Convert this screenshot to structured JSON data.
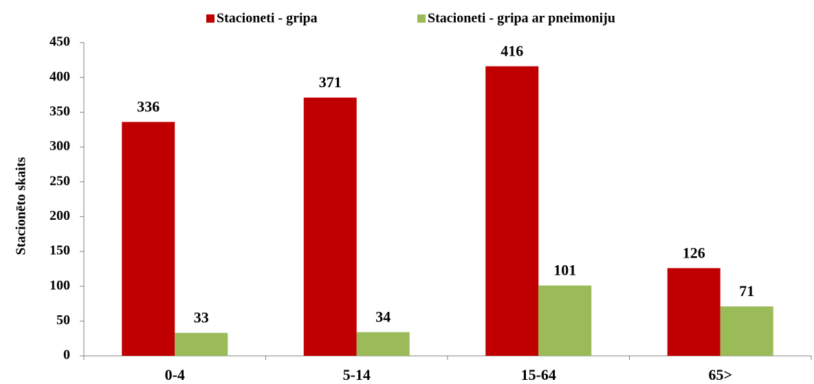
{
  "chart_data": {
    "type": "bar",
    "y_label": "Stacionēto skaits",
    "categories": [
      "0-4",
      "5-14",
      "15-64",
      "65>"
    ],
    "series": [
      {
        "name": "Stacioneti - gripa",
        "color": "#c00000",
        "values": [
          336,
          371,
          416,
          126
        ]
      },
      {
        "name": "Stacioneti - gripa ar pneimoniju",
        "color": "#9bbb59",
        "values": [
          33,
          34,
          101,
          71
        ]
      }
    ],
    "ylim": [
      0,
      450
    ],
    "yticks": [
      0,
      50,
      100,
      150,
      200,
      250,
      300,
      350,
      400,
      450
    ],
    "legend": "top"
  }
}
